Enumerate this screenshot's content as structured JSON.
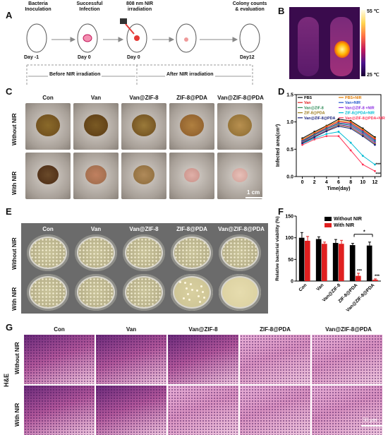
{
  "panels": {
    "A": "A",
    "B": "B",
    "C": "C",
    "D": "D",
    "E": "E",
    "F": "F",
    "G": "G"
  },
  "timeline": {
    "steps": [
      "Bacteria\nInoculation",
      "Successful\nInfection",
      "808 nm NIR\nirradiation",
      "",
      "Colony counts\n& evaluation"
    ],
    "days": [
      "Day -1",
      "Day 0",
      "Day 0",
      "Day12"
    ],
    "phase_before": "Before NIR irradiation",
    "phase_after": "After NIR irradiation"
  },
  "thermal": {
    "max_label": "55 ℃",
    "min_label": "25 ℃"
  },
  "groups": [
    "Con",
    "Van",
    "Van@ZIF-8",
    "ZIF-8@PDA",
    "Van@ZIF-8@PDA"
  ],
  "rows": {
    "without": "Without NIR",
    "with": "With NIR"
  },
  "scale_c": "1 cm",
  "scale_g": "50 μm",
  "he_label": "H&E",
  "colors": {
    "black": "#000000",
    "red": "#e02020",
    "blue": "#2255cc",
    "green": "#2e8b57",
    "orange": "#e07b00",
    "purple": "#8a2be2",
    "cyan": "#00bcd4",
    "pink": "#ff69b4",
    "olive": "#9c7b1c",
    "navy": "#1a237e"
  },
  "chart_data": [
    {
      "type": "line",
      "xlabel": "Time(day)",
      "ylabel": "Infected area(cm²)",
      "x": [
        0,
        2,
        4,
        6,
        8,
        10,
        12
      ],
      "xlim": [
        -1,
        13
      ],
      "ylim": [
        0,
        1.5
      ],
      "yticks": [
        0.0,
        0.5,
        1.0,
        1.5
      ],
      "xticks": [
        0,
        2,
        4,
        6,
        8,
        10,
        12
      ],
      "legend_position": "top",
      "series": [
        {
          "name": "PBS",
          "color": "#000000",
          "values": [
            0.7,
            0.82,
            0.93,
            1.05,
            1.02,
            0.88,
            0.72
          ]
        },
        {
          "name": "PBS+NIR",
          "color": "#e07b00",
          "values": [
            0.68,
            0.8,
            0.92,
            1.02,
            1.0,
            0.86,
            0.7
          ]
        },
        {
          "name": "Van",
          "color": "#e02020",
          "values": [
            0.66,
            0.78,
            0.9,
            1.0,
            0.98,
            0.84,
            0.68
          ]
        },
        {
          "name": "Van+NIR",
          "color": "#2255cc",
          "values": [
            0.65,
            0.77,
            0.88,
            0.98,
            0.96,
            0.82,
            0.66
          ]
        },
        {
          "name": "Van@ZIF-8",
          "color": "#2e8b57",
          "values": [
            0.64,
            0.76,
            0.87,
            0.97,
            0.94,
            0.8,
            0.64
          ]
        },
        {
          "name": "Van@ZIF-8 +NIR",
          "color": "#8a2be2",
          "values": [
            0.63,
            0.74,
            0.85,
            0.95,
            0.92,
            0.78,
            0.62
          ]
        },
        {
          "name": "ZIF-8@PDA",
          "color": "#9c7b1c",
          "values": [
            0.62,
            0.73,
            0.84,
            0.94,
            0.9,
            0.76,
            0.6
          ]
        },
        {
          "name": "ZIF-8@PDA+NIR",
          "color": "#00bcd4",
          "values": [
            0.6,
            0.7,
            0.78,
            0.82,
            0.62,
            0.38,
            0.22
          ]
        },
        {
          "name": "Van@ZIF-8@PDA",
          "color": "#1a237e",
          "values": [
            0.61,
            0.72,
            0.83,
            0.92,
            0.88,
            0.74,
            0.58
          ]
        },
        {
          "name": "Van@ZIF-8@PDA+NIR",
          "color": "#ff3355",
          "values": [
            0.58,
            0.68,
            0.74,
            0.74,
            0.48,
            0.22,
            0.1
          ]
        }
      ],
      "annotations": [
        "***",
        "***"
      ]
    },
    {
      "type": "bar",
      "xlabel": "",
      "ylabel": "Relative bacterial viability (%)",
      "categories": [
        "Con",
        "Van",
        "Van@ZIF-8",
        "ZIF-8@PDA",
        "Van@ZIF-8@PDA"
      ],
      "ylim": [
        0,
        150
      ],
      "yticks": [
        0,
        50,
        100,
        150
      ],
      "legend_position": "top-right",
      "series": [
        {
          "name": "Without NIR",
          "color": "#000000",
          "values": [
            100,
            97,
            88,
            83,
            82
          ],
          "errors": [
            12,
            5,
            8,
            4,
            8
          ]
        },
        {
          "name": "With NIR",
          "color": "#e02020",
          "values": [
            93,
            86,
            86,
            12,
            3
          ],
          "errors": [
            10,
            4,
            8,
            6,
            2
          ]
        }
      ],
      "annotations": [
        "***",
        "***",
        "*"
      ]
    }
  ]
}
